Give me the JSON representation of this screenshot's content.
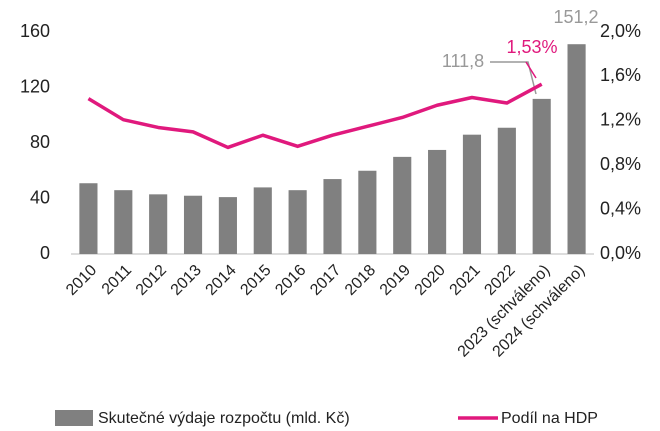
{
  "chart_data": {
    "type": "bar",
    "categories": [
      "2010",
      "2011",
      "2012",
      "2013",
      "2014",
      "2015",
      "2016",
      "2017",
      "2018",
      "2019",
      "2020",
      "2021",
      "2022",
      "2023 (schváleno)",
      "2024 (schváleno)"
    ],
    "series": [
      {
        "name": "Skutečné výdaje rozpočtu (mld. Kč)",
        "type": "bar",
        "color": "#808080",
        "axis": "y",
        "values": [
          51,
          46,
          43,
          42,
          41,
          48,
          46,
          54,
          60,
          70,
          75,
          86,
          91,
          111.8,
          151.2
        ],
        "value_labels": [
          null,
          null,
          null,
          null,
          null,
          null,
          null,
          null,
          null,
          null,
          null,
          null,
          null,
          "111,8",
          "151,2"
        ]
      },
      {
        "name": "Podíl na HDP",
        "type": "line",
        "color": "#e0197d",
        "axis": "y2",
        "values": [
          1.4,
          1.21,
          1.14,
          1.1,
          0.96,
          1.07,
          0.97,
          1.07,
          1.15,
          1.23,
          1.34,
          1.41,
          1.36,
          1.53,
          null
        ],
        "value_labels": [
          null,
          null,
          null,
          null,
          null,
          null,
          null,
          null,
          null,
          null,
          null,
          null,
          null,
          "1,53%",
          null
        ]
      }
    ],
    "ylim": [
      0,
      160
    ],
    "yticks": [
      0,
      40,
      80,
      120,
      160
    ],
    "y2lim": [
      0,
      2.0
    ],
    "y2ticks": [
      {
        "value": 0,
        "label": "0,0%"
      },
      {
        "value": 0.4,
        "label": "0,4%"
      },
      {
        "value": 0.8,
        "label": "0,8%"
      },
      {
        "value": 1.2,
        "label": "1,2%"
      },
      {
        "value": 1.6,
        "label": "1,6%"
      },
      {
        "value": 2.0,
        "label": "2,0%"
      }
    ],
    "legend": "bottom"
  }
}
